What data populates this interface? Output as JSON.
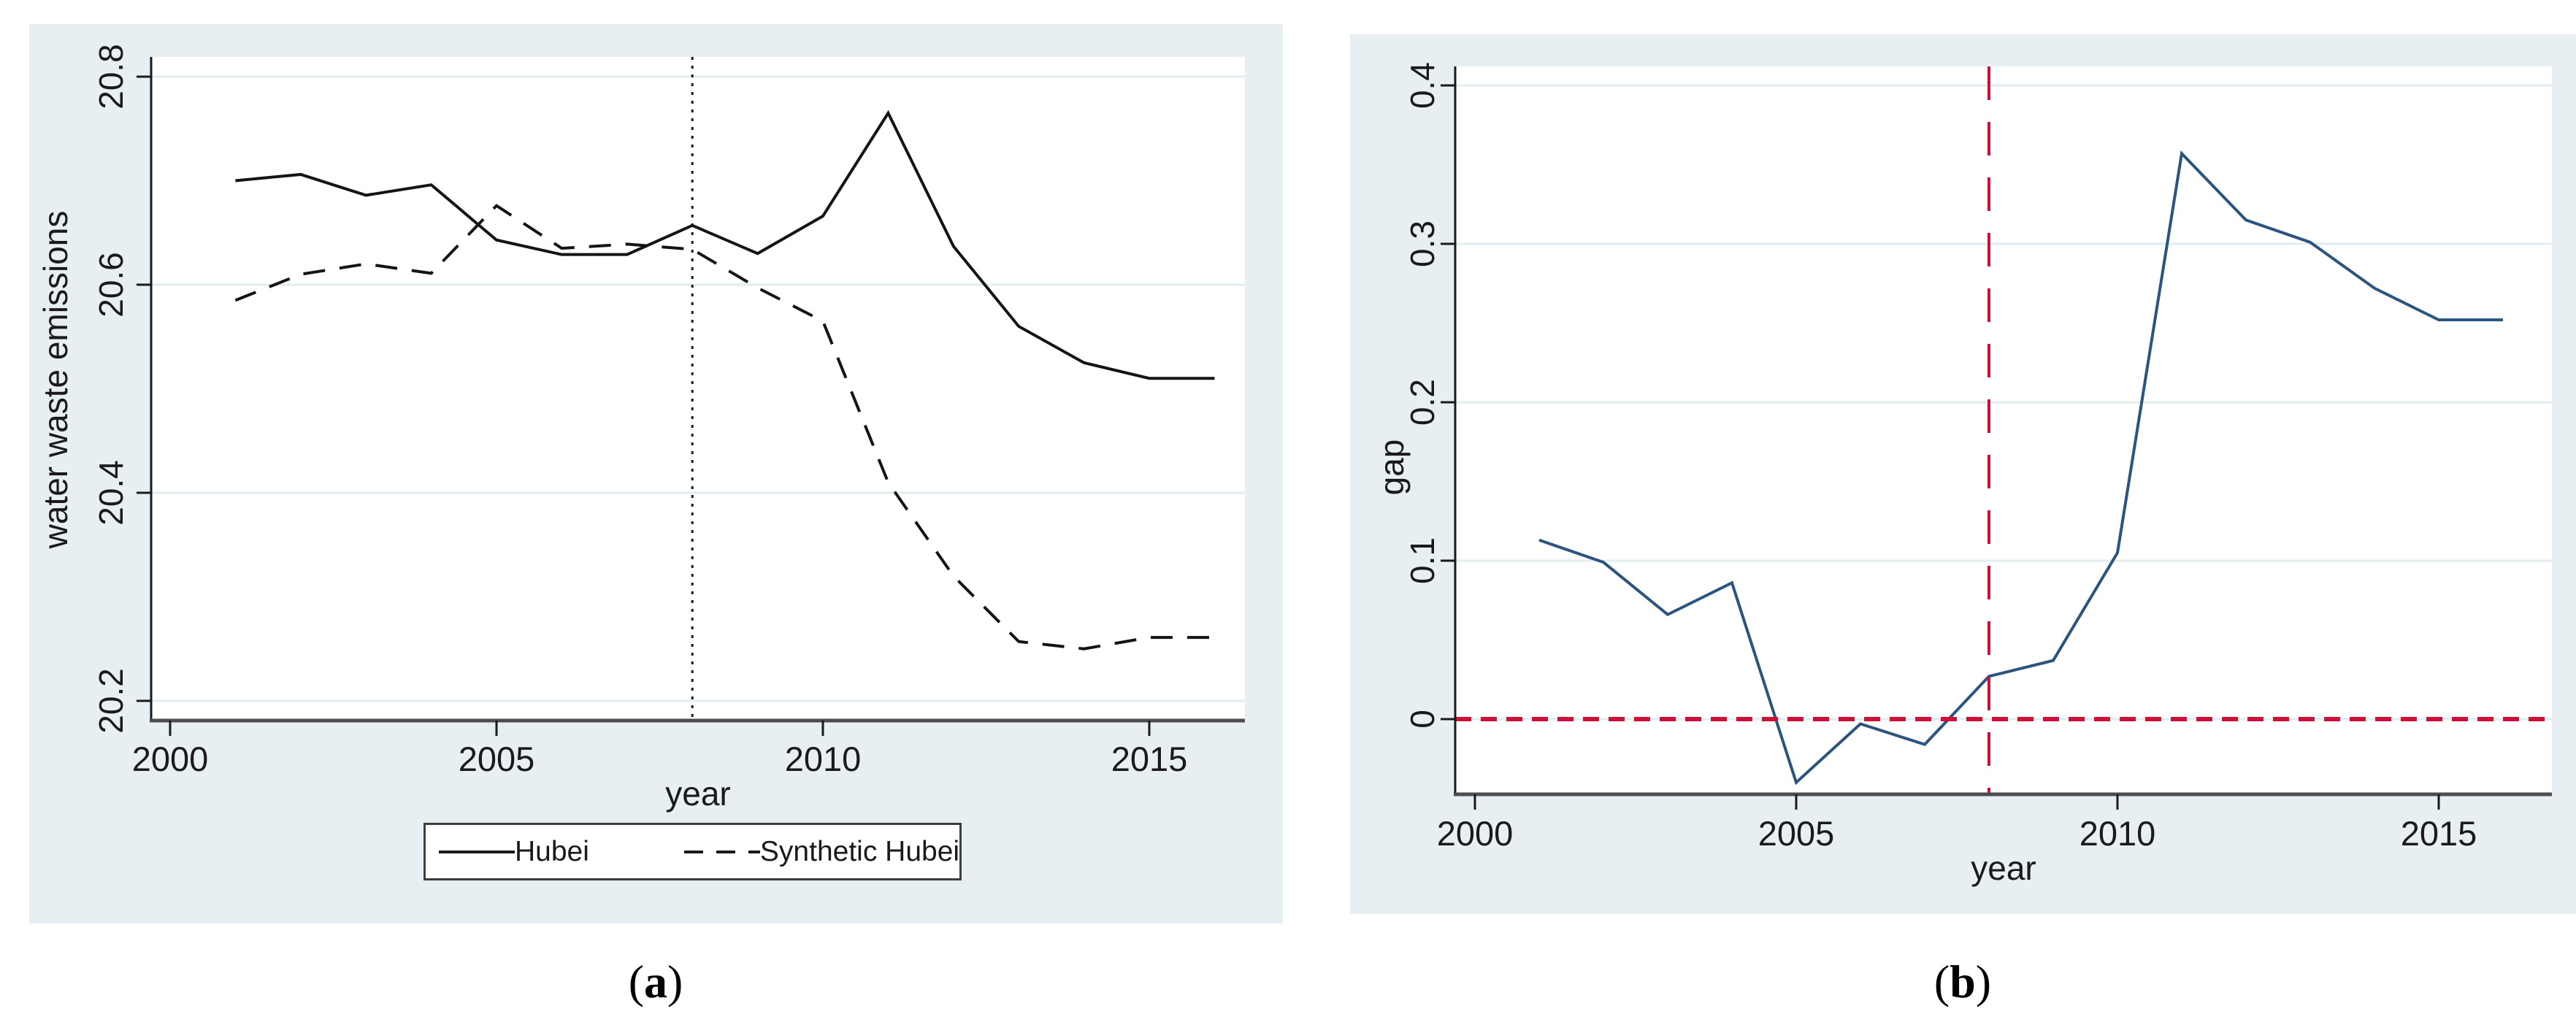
{
  "colors": {
    "panel_bg": "#e8eff2",
    "plot_bg": "#ffffff",
    "grid": "#e2edf1",
    "axis_x": "#4d4d4d",
    "axis_y": "#1a1a1a",
    "line_dark": "#141414",
    "line_blue": "#2b547e",
    "ref_red": "#cc1038",
    "text": "#1a1a1a"
  },
  "panels": [
    {
      "key": "a",
      "ylabel": "water waste emissions",
      "xlabel": "year",
      "caption": {
        "pre": "(",
        "letter": "a",
        "post": ")"
      },
      "legend": {
        "items": [
          {
            "label": "Hubei",
            "line": "solid"
          },
          {
            "label": "Synthetic Hubei",
            "line": "dashed"
          }
        ]
      }
    },
    {
      "key": "b",
      "ylabel": "gap",
      "xlabel": "year",
      "caption": {
        "pre": "(",
        "letter": "b",
        "post": ")"
      }
    }
  ],
  "chart_data": [
    {
      "type": "line",
      "panel": "a",
      "title": "",
      "xlabel": "year",
      "ylabel": "water waste emissions",
      "x": [
        2001,
        2002,
        2003,
        2004,
        2005,
        2006,
        2007,
        2008,
        2009,
        2010,
        2011,
        2012,
        2013,
        2014,
        2015,
        2016
      ],
      "series": [
        {
          "name": "Hubei",
          "style": "solid",
          "color": "#141414",
          "values": [
            20.7,
            20.706,
            20.686,
            20.696,
            20.643,
            20.629,
            20.629,
            20.657,
            20.63,
            20.666,
            20.765,
            20.637,
            20.56,
            20.525,
            20.51,
            20.51
          ]
        },
        {
          "name": "Synthetic Hubei",
          "style": "dashed",
          "color": "#141414",
          "values": [
            20.585,
            20.61,
            20.62,
            20.611,
            20.676,
            20.635,
            20.639,
            20.634,
            20.597,
            20.565,
            20.41,
            20.32,
            20.257,
            20.25,
            20.261,
            20.261
          ]
        }
      ],
      "xticks": [
        2000,
        2005,
        2010,
        2015
      ],
      "xtick_labels": [
        "2000",
        "2005",
        "2010",
        "2015"
      ],
      "yticks": [
        20.2,
        20.4,
        20.6,
        20.8
      ],
      "ytick_labels": [
        "20.2",
        "20.4",
        "20.6",
        "20.8"
      ],
      "xlim": [
        1999.7,
        2016.5
      ],
      "ylim": [
        20.181,
        20.819
      ],
      "grid": "horizontal",
      "ref_lines": [
        {
          "axis": "x",
          "value": 2008,
          "style": "dotted",
          "color": "#1a1a1a"
        }
      ],
      "legend_position": "bottom"
    },
    {
      "type": "line",
      "panel": "b",
      "title": "",
      "xlabel": "year",
      "ylabel": "gap",
      "x": [
        2001,
        2002,
        2003,
        2004,
        2005,
        2006,
        2007,
        2008,
        2009,
        2010,
        2011,
        2012,
        2013,
        2014,
        2015,
        2016
      ],
      "series": [
        {
          "name": "gap",
          "style": "solid",
          "color": "#2b547e",
          "values": [
            0.113,
            0.099,
            0.066,
            0.086,
            -0.04,
            -0.003,
            -0.016,
            0.027,
            0.037,
            0.105,
            0.357,
            0.315,
            0.301,
            0.272,
            0.252,
            0.252
          ]
        }
      ],
      "xticks": [
        2000,
        2005,
        2010,
        2015
      ],
      "xtick_labels": [
        "2000",
        "2005",
        "2010",
        "2015"
      ],
      "yticks": [
        0,
        0.1,
        0.2,
        0.3,
        0.4
      ],
      "ytick_labels": [
        "0",
        "0.1",
        "0.2",
        "0.3",
        "0.4"
      ],
      "xlim": [
        1999.7,
        2016.8
      ],
      "ylim": [
        -0.047,
        0.412
      ],
      "grid": "horizontal",
      "ref_lines": [
        {
          "axis": "y",
          "value": 0,
          "style": "dashed",
          "color": "#cc1038"
        },
        {
          "axis": "x",
          "value": 2008,
          "style": "dashed",
          "color": "#cc1038"
        }
      ],
      "legend_position": "none"
    }
  ]
}
